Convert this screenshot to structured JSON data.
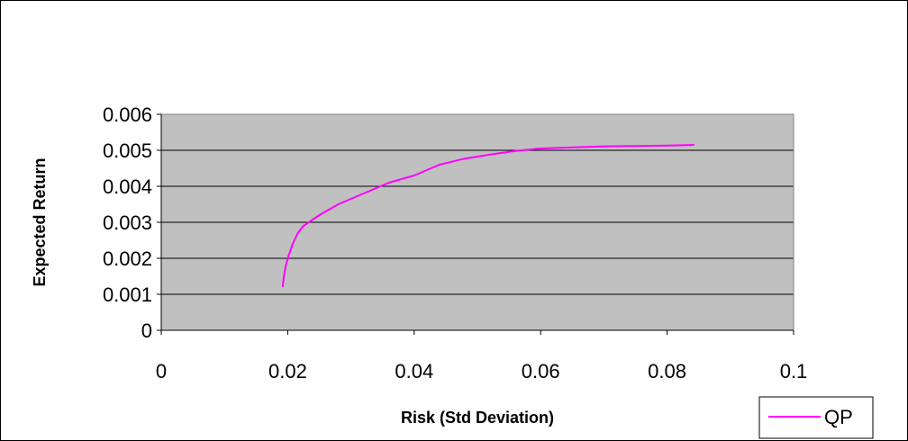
{
  "chart_data": {
    "type": "line",
    "xlabel": "Risk (Std Deviation)",
    "ylabel": "Expected Return",
    "xlim": [
      0,
      0.1
    ],
    "ylim": [
      0,
      0.006
    ],
    "x_ticks": [
      0,
      0.02,
      0.04,
      0.06,
      0.08,
      0.1
    ],
    "x_tick_labels": [
      "0",
      "0.02",
      "0.04",
      "0.06",
      "0.08",
      "0.1"
    ],
    "y_ticks": [
      0,
      0.001,
      0.002,
      0.003,
      0.004,
      0.005,
      0.006
    ],
    "y_tick_labels": [
      "0",
      "0.001",
      "0.002",
      "0.003",
      "0.004",
      "0.005",
      "0.006"
    ],
    "grid": "horizontal",
    "legend_position": "bottom-right",
    "plot_background": "#c0c0c0",
    "series": [
      {
        "name": "QP",
        "color": "#ff00ff",
        "points": [
          [
            0.0192,
            0.0012
          ],
          [
            0.0194,
            0.0015
          ],
          [
            0.0197,
            0.0018
          ],
          [
            0.0202,
            0.0021
          ],
          [
            0.0208,
            0.0024
          ],
          [
            0.0216,
            0.0027
          ],
          [
            0.0225,
            0.0029
          ],
          [
            0.025,
            0.0032
          ],
          [
            0.028,
            0.0035
          ],
          [
            0.032,
            0.0038
          ],
          [
            0.036,
            0.0041
          ],
          [
            0.04,
            0.0043
          ],
          [
            0.044,
            0.0046
          ],
          [
            0.048,
            0.00477
          ],
          [
            0.052,
            0.00488
          ],
          [
            0.056,
            0.00498
          ],
          [
            0.06,
            0.00505
          ],
          [
            0.065,
            0.00508
          ],
          [
            0.07,
            0.00511
          ],
          [
            0.075,
            0.00512
          ],
          [
            0.08,
            0.00513
          ],
          [
            0.0843,
            0.00515
          ]
        ]
      }
    ]
  }
}
